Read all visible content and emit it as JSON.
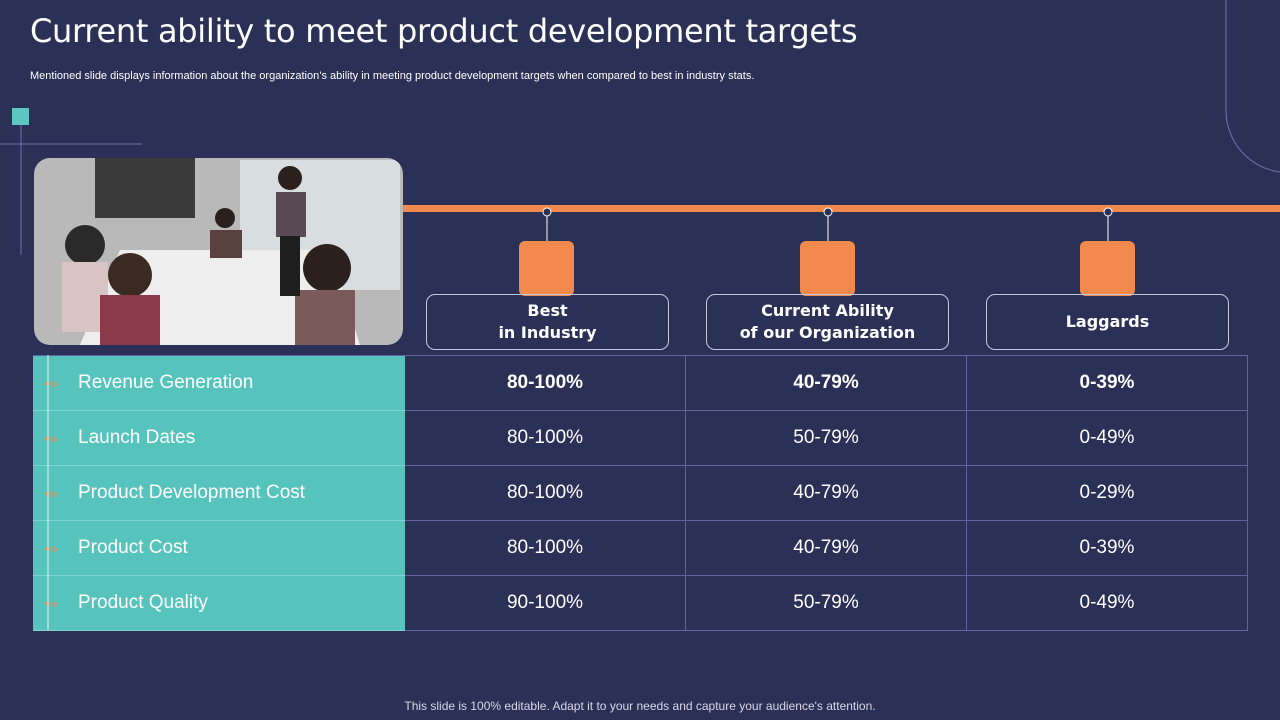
{
  "header": {
    "title": "Current ability to meet product development targets",
    "subtitle": "Mentioned slide displays information about the organization’s ability in meeting product development targets when compared to best in industry stats."
  },
  "table": {
    "columns": [
      [
        "Best",
        "in Industry"
      ],
      [
        "Current Ability",
        "of our Organization"
      ],
      [
        "Laggards"
      ]
    ],
    "rows": [
      {
        "label": "Revenue Generation",
        "values": [
          "80-100%",
          "40-79%",
          "0-39%"
        ]
      },
      {
        "label": "Launch Dates",
        "values": [
          "80-100%",
          "50-79%",
          "0-49%"
        ]
      },
      {
        "label": "Product Development Cost",
        "values": [
          "80-100%",
          "40-79%",
          "0-29%"
        ]
      },
      {
        "label": "Product Cost",
        "values": [
          "80-100%",
          "40-79%",
          "0-39%"
        ]
      },
      {
        "label": "Product Quality",
        "values": [
          "90-100%",
          "50-79%",
          "0-49%"
        ]
      }
    ]
  },
  "footer": "This slide is 100% editable. Adapt it to your needs and capture your audience's attention."
}
